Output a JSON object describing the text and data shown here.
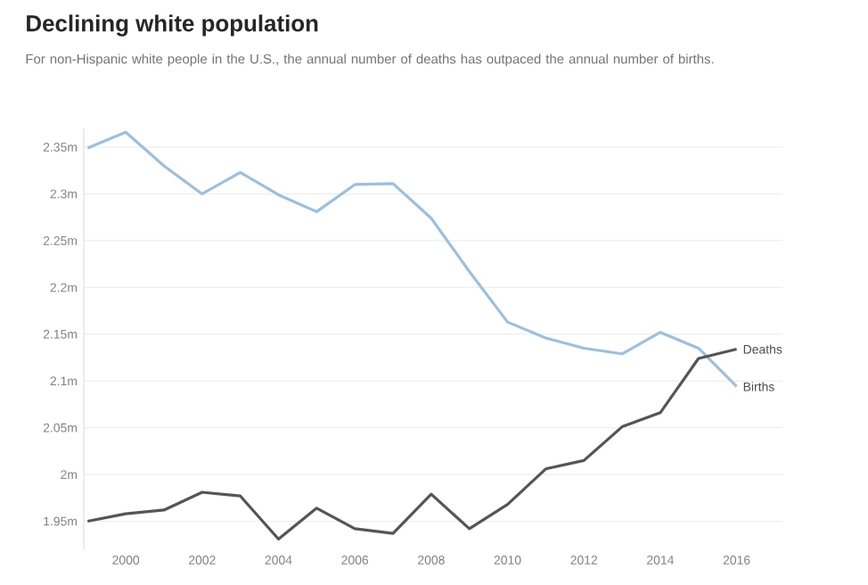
{
  "chart_data": {
    "type": "line",
    "title": "Declining white population",
    "subtitle": "For non-Hispanic white people in the U.S., the annual number of deaths has outpaced the annual number of births.",
    "x": [
      1999,
      2000,
      2001,
      2002,
      2003,
      2004,
      2005,
      2006,
      2007,
      2008,
      2009,
      2010,
      2011,
      2012,
      2013,
      2014,
      2015,
      2016
    ],
    "series": [
      {
        "name": "Births",
        "color": "#9dbfdc",
        "values": [
          2.349,
          2.366,
          2.33,
          2.3,
          2.323,
          2.299,
          2.281,
          2.31,
          2.311,
          2.274,
          2.217,
          2.163,
          2.146,
          2.135,
          2.129,
          2.152,
          2.135,
          2.094
        ]
      },
      {
        "name": "Deaths",
        "color": "#555555",
        "values": [
          1.95,
          1.958,
          1.962,
          1.981,
          1.977,
          1.931,
          1.964,
          1.942,
          1.937,
          1.979,
          1.942,
          1.968,
          2.006,
          2.015,
          2.051,
          2.066,
          2.124,
          2.134
        ]
      }
    ],
    "xlim": [
      1998.9,
      2017.2
    ],
    "ylim": [
      1.92,
      2.37
    ],
    "xticks": [
      2000,
      2002,
      2004,
      2006,
      2008,
      2010,
      2012,
      2014,
      2016
    ],
    "yticks": [
      {
        "value": 1.95,
        "label": "1.95m"
      },
      {
        "value": 2,
        "label": "2m"
      },
      {
        "value": 2.05,
        "label": "2.05m"
      },
      {
        "value": 2.1,
        "label": "2.1m"
      },
      {
        "value": 2.15,
        "label": "2.15m"
      },
      {
        "value": 2.2,
        "label": "2.2m"
      },
      {
        "value": 2.25,
        "label": "2.25m"
      },
      {
        "value": 2.3,
        "label": "2.3m"
      },
      {
        "value": 2.35,
        "label": "2.35m"
      }
    ],
    "grid": "y",
    "marker": "none",
    "line_style": "solid"
  }
}
